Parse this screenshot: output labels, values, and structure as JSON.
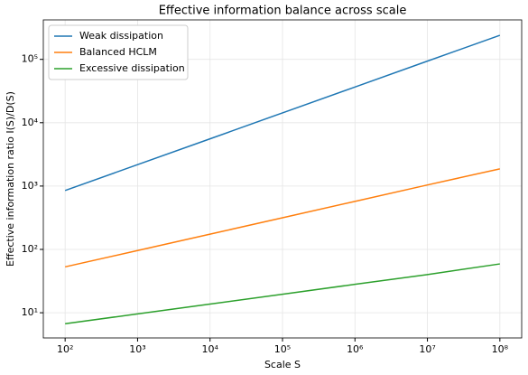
{
  "chart_data": {
    "type": "line",
    "title": "Effective information balance across scale",
    "xlabel": "Scale S",
    "ylabel": "Effective information ratio I(S)/D(S)",
    "x": [
      100,
      1000,
      10000,
      100000,
      1000000,
      10000000,
      100000000
    ],
    "series": [
      {
        "name": "Weak dissipation",
        "color": "#1f77b4",
        "values": [
          850,
          2180,
          5570,
          14300,
          36600,
          93800,
          240000
        ]
      },
      {
        "name": "Balanced HCLM",
        "color": "#ff7f0e",
        "values": [
          53,
          96,
          174,
          316,
          573,
          1040,
          1870
        ]
      },
      {
        "name": "Excessive dissipation",
        "color": "#2ca02c",
        "values": [
          6.7,
          9.6,
          13.7,
          19.6,
          28.1,
          40.1,
          59
        ]
      }
    ],
    "xscale": "log",
    "yscale": "log",
    "xlim": [
      50,
      200000000
    ],
    "ylim": [
      4,
      420000
    ],
    "xticks": [
      {
        "value": 100,
        "label": "10²"
      },
      {
        "value": 1000,
        "label": "10³"
      },
      {
        "value": 10000,
        "label": "10⁴"
      },
      {
        "value": 100000,
        "label": "10⁵"
      },
      {
        "value": 1000000,
        "label": "10⁶"
      },
      {
        "value": 10000000,
        "label": "10⁷"
      },
      {
        "value": 100000000,
        "label": "10⁸"
      }
    ],
    "yticks": [
      {
        "value": 10,
        "label": "10¹"
      },
      {
        "value": 100,
        "label": "10²"
      },
      {
        "value": 1000,
        "label": "10³"
      },
      {
        "value": 10000,
        "label": "10⁴"
      },
      {
        "value": 100000,
        "label": "10⁵"
      }
    ],
    "grid": true,
    "legend": "upper left"
  }
}
